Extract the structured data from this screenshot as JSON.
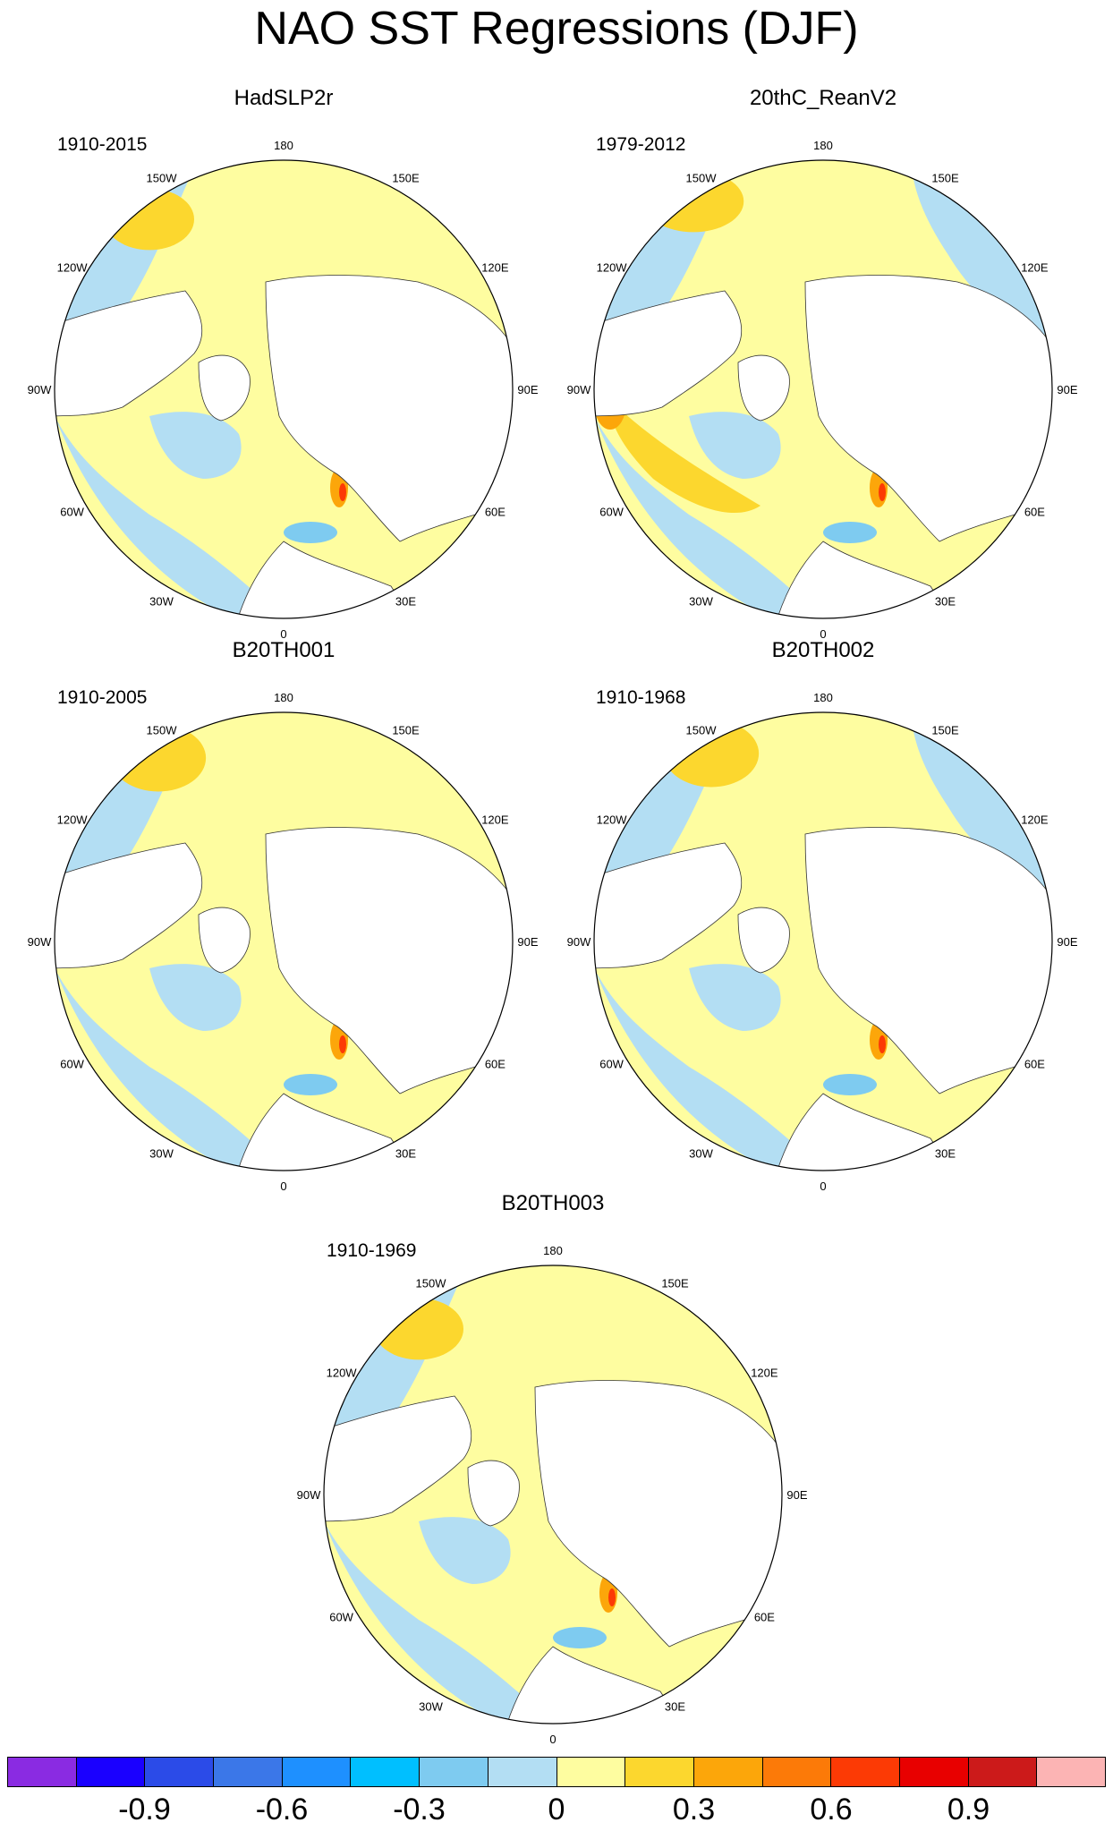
{
  "title": "NAO SST Regressions (DJF)",
  "panels": [
    {
      "name": "HadSLP2r",
      "years": "1910-2015"
    },
    {
      "name": "20thC_ReanV2",
      "years": "1979-2012"
    },
    {
      "name": "B20TH001",
      "years": "1910-2005"
    },
    {
      "name": "B20TH002",
      "years": "1910-1968"
    },
    {
      "name": "B20TH003",
      "years": "1910-1969"
    }
  ],
  "longitude_labels": [
    "180",
    "150E",
    "120E",
    "90E",
    "60E",
    "30E",
    "0",
    "30W",
    "60W",
    "90W",
    "120W",
    "150W"
  ],
  "colorbar": {
    "colors": [
      "#8a2be2",
      "#1a00ff",
      "#2b4be8",
      "#3b77e8",
      "#1e90ff",
      "#00bfff",
      "#7ecbf0",
      "#b3def3",
      "#fefda0",
      "#fcd72e",
      "#fca60a",
      "#fc7a08",
      "#fc3a05",
      "#e80000",
      "#cc1a1a",
      "#fcb4b4"
    ],
    "tick_labels": [
      "-0.9",
      "-0.6",
      "-0.3",
      "0",
      "0.3",
      "0.6",
      "0.9"
    ]
  }
}
